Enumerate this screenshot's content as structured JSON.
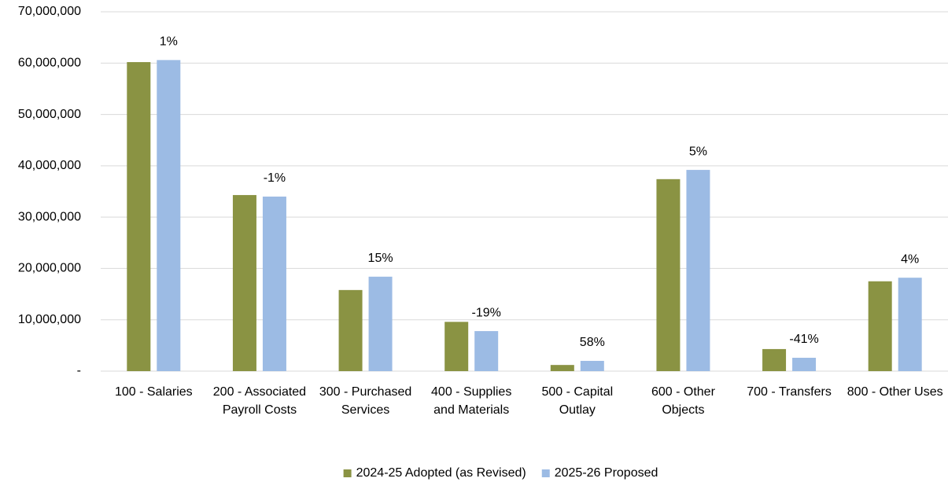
{
  "chart_data": {
    "type": "bar",
    "categories": [
      "100 - Salaries",
      "200 - Associated Payroll Costs",
      "300 - Purchased Services",
      "400 - Supplies and Materials",
      "500 - Capital Outlay",
      "600 - Other Objects",
      "700 - Transfers",
      "800 - Other Uses"
    ],
    "series": [
      {
        "name": "2024-25 Adopted (as Revised)",
        "color": "#8a9343",
        "values": [
          60200000,
          34300000,
          15800000,
          9600000,
          1200000,
          37400000,
          4300000,
          17500000
        ]
      },
      {
        "name": "2025-26 Proposed",
        "color": "#9cbbe4",
        "values": [
          60600000,
          34000000,
          18400000,
          7800000,
          2000000,
          39200000,
          2600000,
          18200000
        ]
      }
    ],
    "annotations": [
      "1%",
      "-1%",
      "15%",
      "-19%",
      "58%",
      "5%",
      "-41%",
      "4%"
    ],
    "ylim": [
      0,
      70000000
    ],
    "yticks": [
      {
        "value": 0,
        "label": "-"
      },
      {
        "value": 10000000,
        "label": "10,000,000"
      },
      {
        "value": 20000000,
        "label": "20,000,000"
      },
      {
        "value": 30000000,
        "label": "30,000,000"
      },
      {
        "value": 40000000,
        "label": "40,000,000"
      },
      {
        "value": 50000000,
        "label": "50,000,000"
      },
      {
        "value": 60000000,
        "label": "60,000,000"
      },
      {
        "value": 70000000,
        "label": "70,000,000"
      }
    ],
    "grid": true,
    "legend": "bottom"
  }
}
